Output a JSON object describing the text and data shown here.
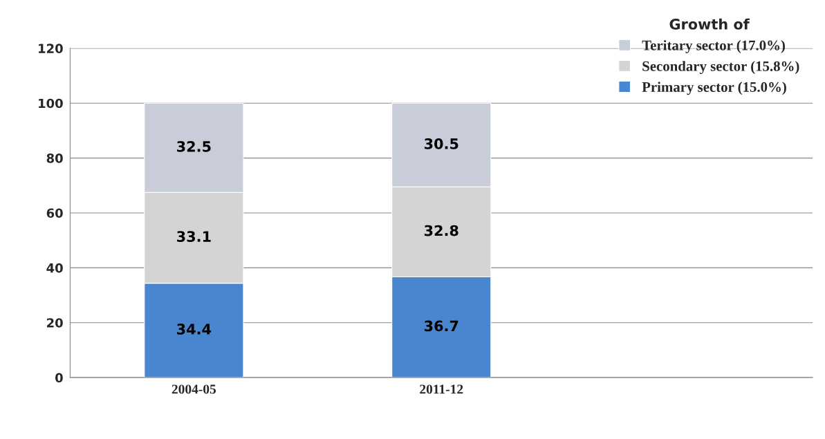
{
  "chart_data": {
    "type": "bar",
    "stacked": true,
    "categories": [
      "2004-05",
      "2011-12",
      null
    ],
    "series": [
      {
        "name": "Primary sector (15.0%)",
        "color": "#4a86d0",
        "values": [
          34.4,
          36.7,
          null
        ]
      },
      {
        "name": "Secondary sector (15.8%)",
        "color": "#d4d4d4",
        "values": [
          33.1,
          32.8,
          null
        ]
      },
      {
        "name": "Teritary sector (17.0%)",
        "color": "#c9ccd9",
        "values": [
          32.5,
          30.5,
          null
        ]
      }
    ],
    "legend_title": "Growth of",
    "legend": "top right",
    "ylim": [
      0,
      120
    ],
    "yticks": [
      0,
      20,
      40,
      60,
      80,
      100,
      120
    ],
    "grid": "y",
    "data_labels": true
  }
}
